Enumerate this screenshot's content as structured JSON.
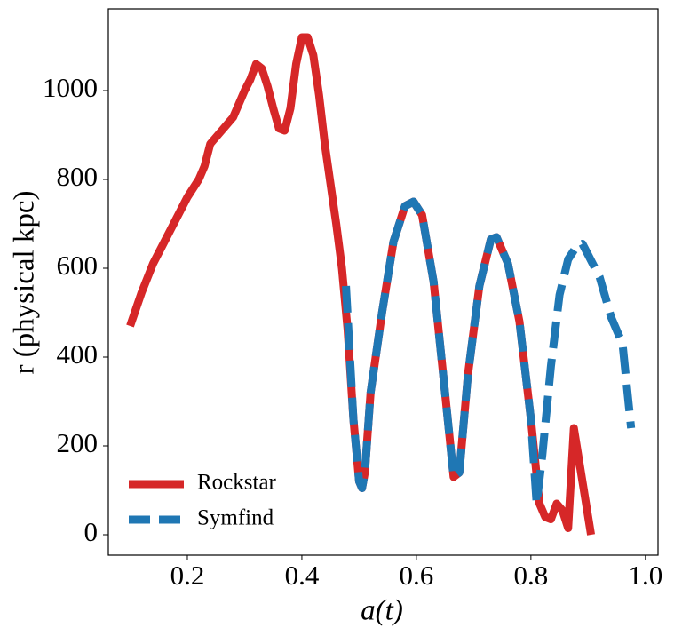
{
  "chart_data": {
    "type": "line",
    "xlabel": "a(t)",
    "ylabel": "r (physical kpc)",
    "xlim": [
      0.062,
      1.022
    ],
    "ylim": [
      -46,
      1184
    ],
    "xticks": [
      0.2,
      0.4,
      0.6,
      0.8,
      {
        "value": 1,
        "label": "1.0"
      }
    ],
    "yticks": [
      0,
      200,
      400,
      600,
      800,
      1000
    ],
    "legend": "lower left",
    "series": [
      {
        "name": "Rockstar",
        "color": "#d62728",
        "dashed": false,
        "x": [
          0.1,
          0.12,
          0.14,
          0.16,
          0.18,
          0.2,
          0.22,
          0.23,
          0.24,
          0.26,
          0.28,
          0.3,
          0.31,
          0.32,
          0.33,
          0.34,
          0.35,
          0.36,
          0.37,
          0.38,
          0.39,
          0.4,
          0.41,
          0.42,
          0.43,
          0.44,
          0.45,
          0.46,
          0.47,
          0.48,
          0.49,
          0.5,
          0.505,
          0.51,
          0.52,
          0.54,
          0.56,
          0.58,
          0.595,
          0.61,
          0.63,
          0.65,
          0.665,
          0.675,
          0.69,
          0.71,
          0.73,
          0.74,
          0.76,
          0.78,
          0.8,
          0.815,
          0.825,
          0.835,
          0.845,
          0.855,
          0.865,
          0.875,
          0.89,
          0.905
        ],
        "values": [
          470,
          545,
          610,
          660,
          710,
          760,
          800,
          830,
          880,
          910,
          940,
          1000,
          1025,
          1060,
          1050,
          1010,
          960,
          915,
          910,
          960,
          1060,
          1120,
          1120,
          1080,
          990,
          880,
          790,
          700,
          600,
          460,
          260,
          120,
          105,
          140,
          320,
          500,
          660,
          740,
          750,
          720,
          570,
          320,
          130,
          140,
          360,
          560,
          665,
          670,
          610,
          480,
          260,
          70,
          40,
          35,
          70,
          55,
          15,
          240,
          120,
          0
        ]
      },
      {
        "name": "Symfind",
        "color": "#1f77b4",
        "dashed": true,
        "x": [
          0.477,
          0.49,
          0.5,
          0.505,
          0.51,
          0.52,
          0.54,
          0.56,
          0.58,
          0.595,
          0.61,
          0.63,
          0.65,
          0.665,
          0.675,
          0.69,
          0.71,
          0.73,
          0.74,
          0.76,
          0.78,
          0.8,
          0.81,
          0.82,
          0.835,
          0.85,
          0.865,
          0.88,
          0.89,
          0.9,
          0.92,
          0.94,
          0.96,
          0.975
        ],
        "values": [
          560,
          260,
          120,
          105,
          140,
          320,
          500,
          660,
          740,
          750,
          720,
          570,
          320,
          130,
          140,
          360,
          560,
          665,
          670,
          610,
          480,
          260,
          70,
          180,
          380,
          540,
          620,
          650,
          655,
          630,
          580,
          490,
          430,
          240
        ]
      }
    ]
  }
}
